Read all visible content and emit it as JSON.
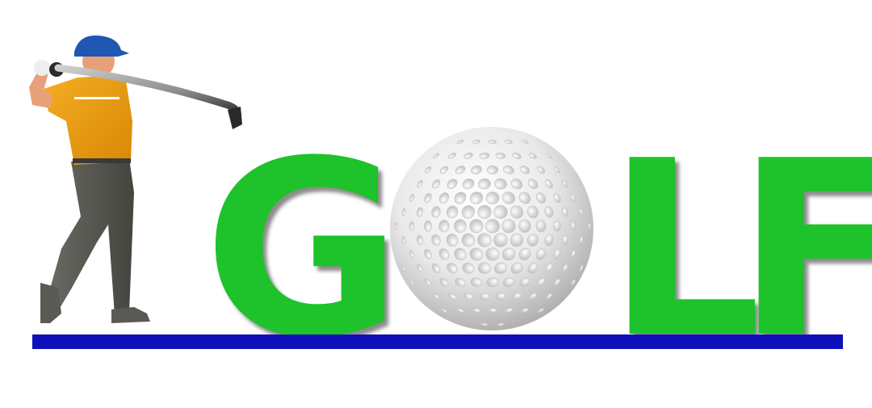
{
  "logo": {
    "letters": [
      "G",
      "L",
      "F"
    ],
    "ball_letter": "O",
    "colors": {
      "letters": "#1ec22a",
      "line": "#1010bb",
      "shirt": "#ef9d12",
      "pants": "#5b5b56",
      "cap": "#1f57b3",
      "skin": "#e8a07a"
    }
  }
}
